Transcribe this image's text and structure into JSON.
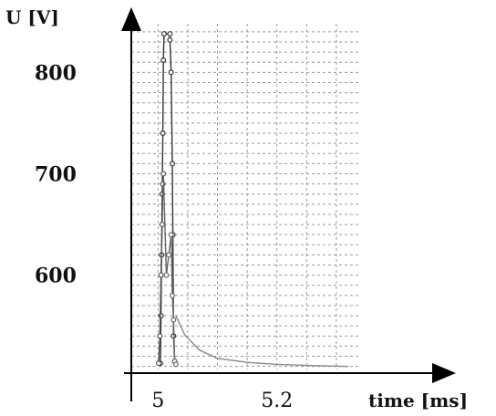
{
  "chart_data": {
    "type": "line",
    "title": "",
    "ylabel": "U [V]",
    "xlabel": "time [ms]",
    "xlim": [
      4.955,
      5.34
    ],
    "ylim": [
      507,
      848
    ],
    "y_ticks": [
      "800",
      "700",
      "600"
    ],
    "y_tick_values": [
      800,
      700,
      600
    ],
    "x_ticks": [
      "5",
      "5.2"
    ],
    "x_tick_values": [
      5.0,
      5.2
    ],
    "grid": true,
    "series": [
      {
        "color": "#333333",
        "markers": true,
        "points": [
          [
            5.004,
            513
          ],
          [
            5.005,
            560
          ],
          [
            5.006,
            620
          ],
          [
            5.007,
            680
          ],
          [
            5.008,
            740
          ],
          [
            5.009,
            812
          ],
          [
            5.01,
            838
          ],
          [
            5.02,
            838
          ],
          [
            5.02,
            832
          ],
          [
            5.022,
            800
          ],
          [
            5.024,
            710
          ],
          [
            5.025,
            640
          ],
          [
            5.026,
            540
          ],
          [
            5.028,
            515
          ]
        ]
      },
      {
        "color": "#555555",
        "markers": true,
        "points": [
          [
            5.001,
            513
          ],
          [
            5.003,
            540
          ],
          [
            5.005,
            600
          ],
          [
            5.007,
            650
          ],
          [
            5.008,
            690
          ],
          [
            5.009,
            700
          ]
        ]
      },
      {
        "color": "#666666",
        "markers": true,
        "points": [
          [
            5.009,
            700
          ],
          [
            5.014,
            600
          ],
          [
            5.018,
            620
          ],
          [
            5.022,
            640
          ],
          [
            5.024,
            580
          ],
          [
            5.026,
            556
          ],
          [
            5.028,
            515
          ],
          [
            5.03,
            512
          ]
        ]
      },
      {
        "color": "#888888",
        "markers": false,
        "points": [
          [
            5.03,
            560
          ],
          [
            5.045,
            541
          ],
          [
            5.07,
            526
          ],
          [
            5.1,
            518
          ],
          [
            5.15,
            514
          ],
          [
            5.2,
            512
          ],
          [
            5.25,
            511
          ],
          [
            5.32,
            510
          ]
        ]
      }
    ]
  }
}
